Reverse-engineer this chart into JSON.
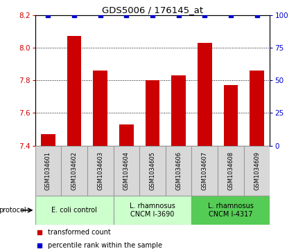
{
  "title": "GDS5006 / 176145_at",
  "samples": [
    "GSM1034601",
    "GSM1034602",
    "GSM1034603",
    "GSM1034604",
    "GSM1034605",
    "GSM1034606",
    "GSM1034607",
    "GSM1034608",
    "GSM1034609"
  ],
  "bar_values": [
    7.47,
    8.07,
    7.86,
    7.53,
    7.8,
    7.83,
    8.03,
    7.77,
    7.86
  ],
  "percentile_values": [
    100,
    100,
    100,
    100,
    100,
    100,
    100,
    100,
    100
  ],
  "bar_color": "#cc0000",
  "dot_color": "#0000cc",
  "ylim_left": [
    7.4,
    8.2
  ],
  "ylim_right": [
    0,
    100
  ],
  "yticks_left": [
    7.4,
    7.6,
    7.8,
    8.0,
    8.2
  ],
  "yticks_right": [
    0,
    25,
    50,
    75,
    100
  ],
  "group_colors": [
    "#ccffcc",
    "#ccffcc",
    "#55cc55"
  ],
  "group_labels": [
    "E. coli control",
    "L. rhamnosus\nCNCM I-3690",
    "L. rhamnosus\nCNCM I-4317"
  ],
  "group_ranges": [
    [
      0,
      3
    ],
    [
      3,
      6
    ],
    [
      6,
      9
    ]
  ],
  "sample_box_color": "#d8d8d8",
  "bar_width": 0.55,
  "legend_red_label": "transformed count",
  "legend_blue_label": "percentile rank within the sample",
  "protocol_label": "protocol"
}
